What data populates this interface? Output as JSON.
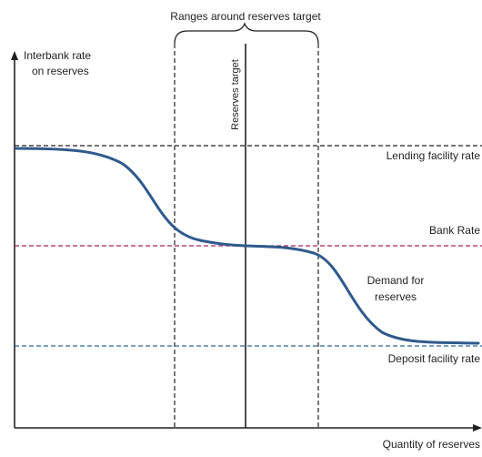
{
  "diagram": {
    "labels": {
      "range_header": "Ranges around reserves target",
      "y_axis_line1": "Interbank rate",
      "y_axis_line2": "on reserves",
      "reserves_target": "Reserves target",
      "lending_rate": "Lending facility rate",
      "bank_rate": "Bank Rate",
      "demand_line1": "Demand for",
      "demand_line2": "reserves",
      "deposit_rate": "Deposit facility rate",
      "x_axis": "Quantity of reserves"
    },
    "colors": {
      "text": "#231f20",
      "axis": "#231f20",
      "dashed_black": "#231f20",
      "bank_rate_line": "#b0205e",
      "deposit_rate_line": "#2a6a9e",
      "demand_curve": "#2f5a8c"
    }
  }
}
